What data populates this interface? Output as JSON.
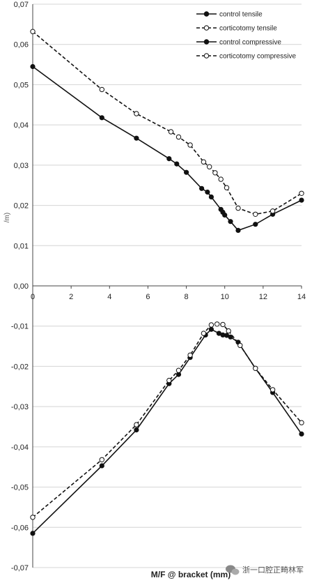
{
  "chart_data": {
    "type": "line",
    "title": "",
    "xlabel": "M/F @ bracket (mm)",
    "ylabel": "",
    "xlim": [
      0,
      14
    ],
    "ylim": [
      -0.07,
      0.07
    ],
    "x_ticks": [
      "0",
      "2",
      "4",
      "6",
      "8",
      "10",
      "12",
      "14"
    ],
    "y_ticks": [
      "0,07",
      "0,06",
      "0,05",
      "0,04",
      "0,03",
      "0,02",
      "0,01",
      "0,00",
      "-0,01",
      "-0,02",
      "-0,03",
      "-0,04",
      "-0,05",
      "-0,06",
      "-0,07"
    ],
    "grid": true,
    "legend_position": "top-right",
    "series": [
      {
        "name": "control tensile",
        "style": "solid",
        "marker": "filled-circle",
        "color": "#111111",
        "points": [
          [
            0,
            0.0545
          ],
          [
            3.6,
            0.0418
          ],
          [
            5.4,
            0.0367
          ],
          [
            7.1,
            0.0316
          ],
          [
            7.5,
            0.0303
          ],
          [
            8.0,
            0.0282
          ],
          [
            8.8,
            0.0242
          ],
          [
            9.1,
            0.0233
          ],
          [
            9.3,
            0.0221
          ],
          [
            9.8,
            0.019
          ],
          [
            9.9,
            0.0183
          ],
          [
            10.0,
            0.0176
          ],
          [
            10.3,
            0.016
          ],
          [
            10.7,
            0.0138
          ],
          [
            11.6,
            0.0153
          ],
          [
            12.5,
            0.0178
          ],
          [
            14.0,
            0.0213
          ]
        ]
      },
      {
        "name": "corticotomy tensile",
        "style": "dashed",
        "marker": "open-circle",
        "color": "#111111",
        "points": [
          [
            0,
            0.0632
          ],
          [
            3.6,
            0.0488
          ],
          [
            5.4,
            0.0428
          ],
          [
            7.2,
            0.0383
          ],
          [
            7.6,
            0.037
          ],
          [
            8.2,
            0.035
          ],
          [
            8.9,
            0.0308
          ],
          [
            9.2,
            0.0296
          ],
          [
            9.5,
            0.0281
          ],
          [
            9.8,
            0.0265
          ],
          [
            10.1,
            0.0244
          ],
          [
            10.7,
            0.0193
          ],
          [
            11.6,
            0.0178
          ],
          [
            12.5,
            0.0186
          ],
          [
            14.0,
            0.023
          ]
        ]
      },
      {
        "name": "control compressive",
        "style": "solid",
        "marker": "filled-circle",
        "color": "#111111",
        "points": [
          [
            0,
            -0.0615
          ],
          [
            3.6,
            -0.0447
          ],
          [
            5.4,
            -0.0358
          ],
          [
            7.1,
            -0.0243
          ],
          [
            7.6,
            -0.022
          ],
          [
            8.2,
            -0.0178
          ],
          [
            9.0,
            -0.0122
          ],
          [
            9.3,
            -0.0108
          ],
          [
            9.7,
            -0.0118
          ],
          [
            9.9,
            -0.0122
          ],
          [
            10.1,
            -0.0123
          ],
          [
            10.3,
            -0.0127
          ],
          [
            10.7,
            -0.014
          ],
          [
            11.6,
            -0.0205
          ],
          [
            12.5,
            -0.0265
          ],
          [
            14.0,
            -0.0368
          ]
        ]
      },
      {
        "name": "corticotomy compressive",
        "style": "dashed",
        "marker": "open-circle",
        "color": "#111111",
        "points": [
          [
            0,
            -0.0575
          ],
          [
            3.6,
            -0.0432
          ],
          [
            5.4,
            -0.0345
          ],
          [
            7.1,
            -0.0235
          ],
          [
            7.6,
            -0.021
          ],
          [
            8.2,
            -0.0172
          ],
          [
            8.9,
            -0.0118
          ],
          [
            9.3,
            -0.0097
          ],
          [
            9.6,
            -0.0095
          ],
          [
            9.9,
            -0.0096
          ],
          [
            10.2,
            -0.0112
          ],
          [
            10.8,
            -0.0148
          ],
          [
            11.6,
            -0.0205
          ],
          [
            12.5,
            -0.0258
          ],
          [
            14.0,
            -0.034
          ]
        ]
      }
    ]
  },
  "axis_fragment": "/m)",
  "watermark": {
    "text": "浙一口腔正畸林军",
    "icon": "wechat-icon"
  }
}
